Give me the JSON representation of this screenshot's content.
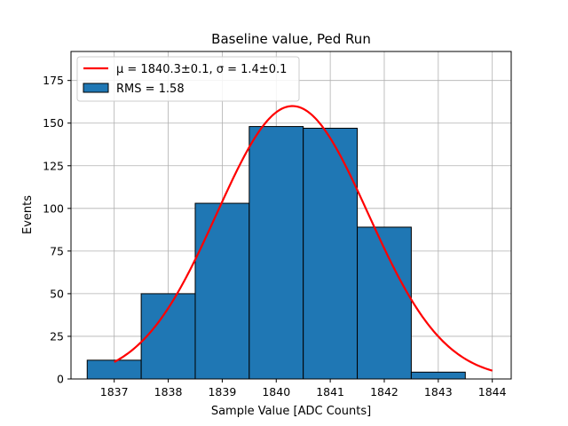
{
  "chart_data": {
    "type": "bar",
    "title": "Baseline value, Ped Run",
    "xlabel": "Sample Value [ADC Counts]",
    "ylabel": "Events",
    "xlim": [
      1836.2,
      1844.35
    ],
    "ylim": [
      0,
      192
    ],
    "xticks": [
      1837,
      1838,
      1839,
      1840,
      1841,
      1842,
      1843,
      1844
    ],
    "yticks": [
      0,
      25,
      50,
      75,
      100,
      125,
      150,
      175
    ],
    "grid": true,
    "legend_position": "top-left",
    "histogram": {
      "name": "RMS = 1.58",
      "color": "#1f77b4",
      "edge_color": "#000000",
      "bins": [
        {
          "left": 1836.5,
          "right": 1837.5,
          "count": 11
        },
        {
          "left": 1837.5,
          "right": 1838.5,
          "count": 50
        },
        {
          "left": 1838.5,
          "right": 1839.5,
          "count": 103
        },
        {
          "left": 1839.5,
          "right": 1840.5,
          "count": 148
        },
        {
          "left": 1840.5,
          "right": 1841.5,
          "count": 147
        },
        {
          "left": 1841.5,
          "right": 1842.5,
          "count": 89
        },
        {
          "left": 1842.5,
          "right": 1843.5,
          "count": 4
        }
      ]
    },
    "fit": {
      "type": "gaussian",
      "name": "μ = 1840.3±0.1, σ = 1.4±0.1",
      "color": "#ff0000",
      "amplitude": 160,
      "mu": 1840.3,
      "sigma": 1.4,
      "x_range": [
        1837,
        1844
      ]
    }
  }
}
